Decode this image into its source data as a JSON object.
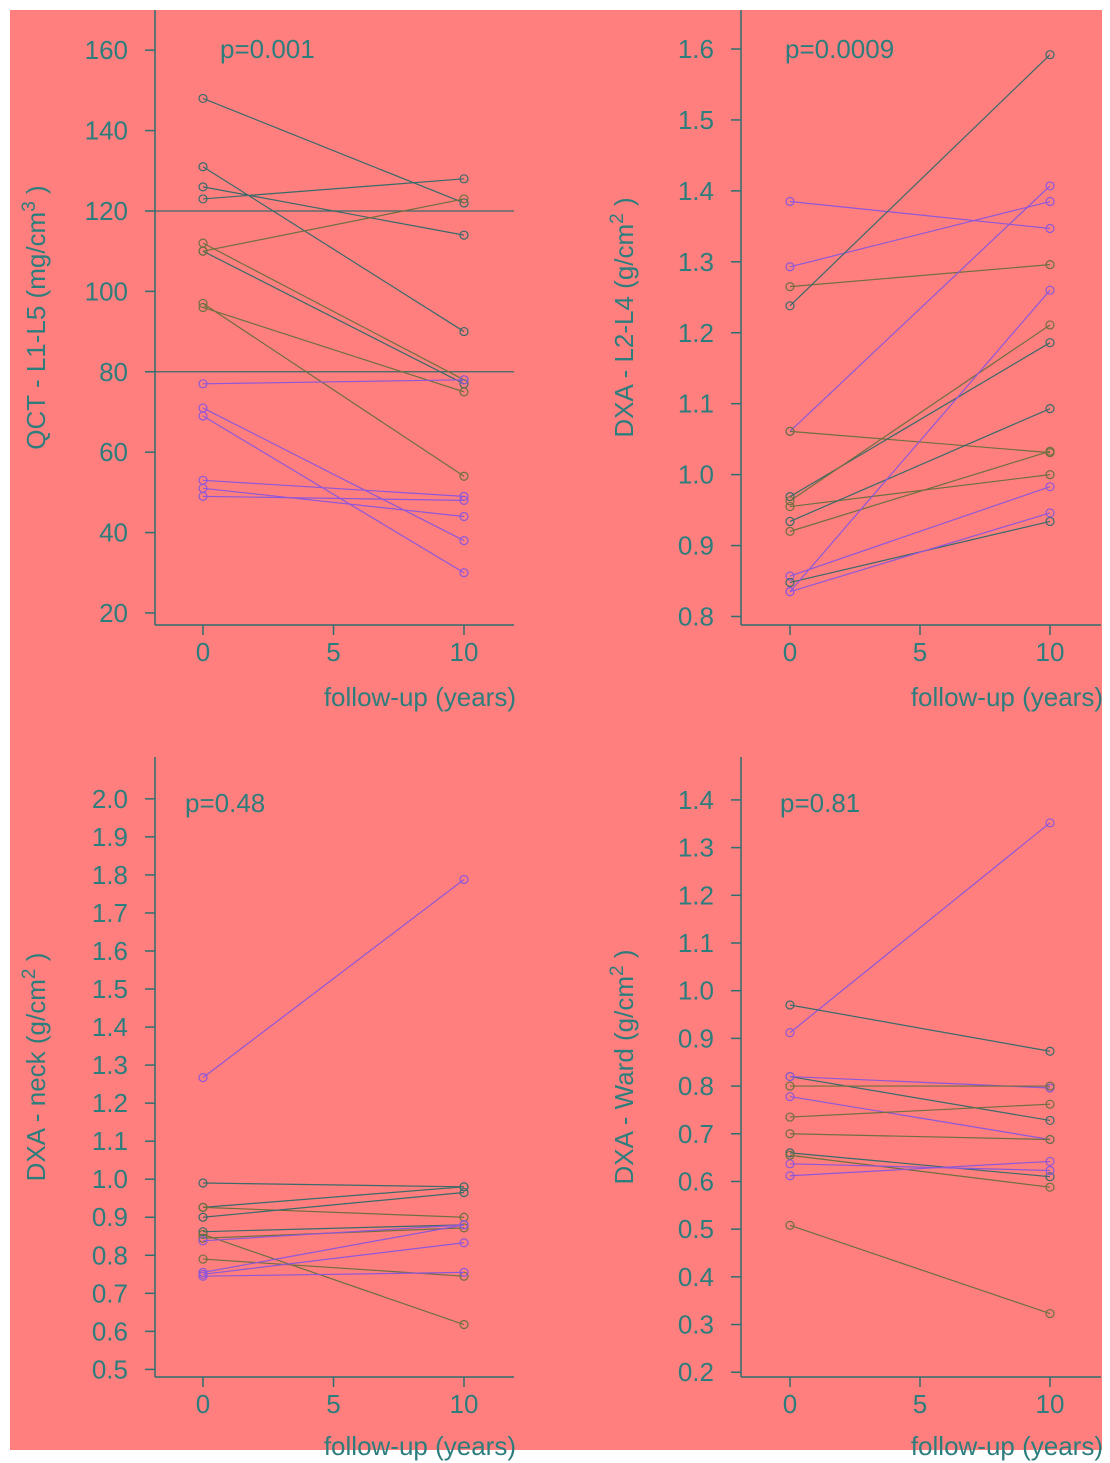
{
  "colors": {
    "background": "#ff7f7f",
    "axis": "#2f6f6f",
    "text": "#2e7d7d",
    "line_teal": "#3a6a6a",
    "line_olive": "#6f6f3f",
    "line_purple": "#8f57d8"
  },
  "chart_data": [
    {
      "type": "line",
      "panel": "top-left",
      "ylabel_main": "QCT - L1-L5 (mg/cm",
      "ylabel_sup": "3",
      "ylabel_end": " )",
      "xlabel": "follow-up (years)",
      "annotation": "p=0.001",
      "xlim": [
        -1.8,
        11.8
      ],
      "ylim": [
        17,
        170
      ],
      "xticks": [
        0,
        5,
        10
      ],
      "yticks": [
        20,
        40,
        60,
        80,
        100,
        120,
        140,
        160
      ],
      "ytick_labels": [
        "20",
        "40",
        "60",
        "80",
        "100",
        "120",
        "140",
        "160"
      ],
      "reference_lines": [
        120,
        80
      ],
      "series": [
        {
          "color": "teal",
          "values": [
            148,
            122
          ]
        },
        {
          "color": "teal",
          "values": [
            131,
            90
          ]
        },
        {
          "color": "teal",
          "values": [
            126,
            114
          ]
        },
        {
          "color": "teal",
          "values": [
            123,
            128
          ]
        },
        {
          "color": "olive",
          "values": [
            112,
            78
          ]
        },
        {
          "color": "teal",
          "values": [
            110,
            77
          ]
        },
        {
          "color": "olive",
          "values": [
            110,
            123
          ]
        },
        {
          "color": "olive",
          "values": [
            97,
            54
          ]
        },
        {
          "color": "olive",
          "values": [
            96,
            75
          ]
        },
        {
          "color": "purple",
          "values": [
            77,
            78
          ]
        },
        {
          "color": "purple",
          "values": [
            71,
            38
          ]
        },
        {
          "color": "purple",
          "values": [
            69,
            30
          ]
        },
        {
          "color": "purple",
          "values": [
            53,
            49
          ]
        },
        {
          "color": "purple",
          "values": [
            51,
            44
          ]
        },
        {
          "color": "purple",
          "values": [
            49,
            48
          ]
        }
      ]
    },
    {
      "type": "line",
      "panel": "top-right",
      "ylabel_main": "DXA - L2-L4 (g/cm",
      "ylabel_sup": "2",
      "ylabel_end": " )",
      "xlabel": "follow-up (years)",
      "annotation": "p=0.0009",
      "xlim": [
        -1.8,
        11.8
      ],
      "ylim": [
        0.788,
        1.655
      ],
      "xticks": [
        0,
        5,
        10
      ],
      "yticks": [
        0.8,
        0.9,
        1.0,
        1.1,
        1.2,
        1.3,
        1.4,
        1.5,
        1.6
      ],
      "ytick_labels": [
        "0.8",
        "0.9",
        "1.0",
        "1.1",
        "1.2",
        "1.3",
        "1.4",
        "1.5",
        "1.6"
      ],
      "reference_lines": [],
      "series": [
        {
          "color": "purple",
          "values": [
            1.385,
            1.347
          ]
        },
        {
          "color": "purple",
          "values": [
            1.293,
            1.385
          ]
        },
        {
          "color": "olive",
          "values": [
            1.265,
            1.296
          ]
        },
        {
          "color": "teal",
          "values": [
            1.238,
            1.592
          ]
        },
        {
          "color": "purple",
          "values": [
            1.061,
            1.407
          ]
        },
        {
          "color": "olive",
          "values": [
            1.061,
            1.031
          ]
        },
        {
          "color": "teal",
          "values": [
            0.969,
            1.186
          ]
        },
        {
          "color": "olive",
          "values": [
            0.963,
            1.211
          ]
        },
        {
          "color": "olive",
          "values": [
            0.955,
            1.0
          ]
        },
        {
          "color": "teal",
          "values": [
            0.934,
            1.093
          ]
        },
        {
          "color": "olive",
          "values": [
            0.92,
            1.033
          ]
        },
        {
          "color": "purple",
          "values": [
            0.857,
            0.983
          ]
        },
        {
          "color": "teal",
          "values": [
            0.848,
            0.934
          ]
        },
        {
          "color": "purple",
          "values": [
            0.835,
            0.946
          ]
        },
        {
          "color": "purple",
          "values": [
            0.835,
            1.26
          ]
        }
      ]
    },
    {
      "type": "line",
      "panel": "bottom-left",
      "ylabel_main": "DXA - neck (g/cm",
      "ylabel_sup": "2",
      "ylabel_end": " )",
      "xlabel": "follow-up (years)",
      "annotation": "p=0.48",
      "xlim": [
        -1.8,
        11.8
      ],
      "ylim": [
        0.48,
        2.11
      ],
      "xticks": [
        0,
        5,
        10
      ],
      "yticks": [
        0.5,
        0.6,
        0.7,
        0.8,
        0.9,
        1.0,
        1.1,
        1.2,
        1.3,
        1.4,
        1.5,
        1.6,
        1.7,
        1.8,
        1.9,
        2.0
      ],
      "ytick_labels": [
        "0.5",
        "0.6",
        "0.7",
        "0.8",
        "0.9",
        "1.0",
        "1.1",
        "1.2",
        "1.3",
        "1.4",
        "1.5",
        "1.6",
        "1.7",
        "1.8",
        "1.9",
        "2.0"
      ],
      "reference_lines": [],
      "series": [
        {
          "color": "purple",
          "values": [
            1.267,
            1.788
          ]
        },
        {
          "color": "teal",
          "values": [
            0.99,
            0.98
          ]
        },
        {
          "color": "teal",
          "values": [
            0.926,
            0.98
          ]
        },
        {
          "color": "olive",
          "values": [
            0.926,
            0.9
          ]
        },
        {
          "color": "teal",
          "values": [
            0.9,
            0.965
          ]
        },
        {
          "color": "teal",
          "values": [
            0.862,
            0.88
          ]
        },
        {
          "color": "olive",
          "values": [
            0.855,
            0.618
          ]
        },
        {
          "color": "olive",
          "values": [
            0.845,
            0.872
          ]
        },
        {
          "color": "olive",
          "values": [
            0.79,
            0.745
          ]
        },
        {
          "color": "purple",
          "values": [
            0.838,
            0.88
          ]
        },
        {
          "color": "purple",
          "values": [
            0.75,
            0.833
          ]
        },
        {
          "color": "purple",
          "values": [
            0.745,
            0.755
          ]
        },
        {
          "color": "purple",
          "values": [
            0.755,
            0.88
          ]
        }
      ]
    },
    {
      "type": "line",
      "panel": "bottom-right",
      "ylabel_main": "DXA - Ward (g/cm",
      "ylabel_sup": "2",
      "ylabel_end": " )",
      "xlabel": "follow-up (years)",
      "annotation": "p=0.81",
      "xlim": [
        -1.8,
        11.8
      ],
      "ylim": [
        0.19,
        1.49
      ],
      "xticks": [
        0,
        5,
        10
      ],
      "yticks": [
        0.2,
        0.3,
        0.4,
        0.5,
        0.6,
        0.7,
        0.8,
        0.9,
        1.0,
        1.1,
        1.2,
        1.3,
        1.4
      ],
      "ytick_labels": [
        "0.2",
        "0.3",
        "0.4",
        "0.5",
        "0.6",
        "0.7",
        "0.8",
        "0.9",
        "1.0",
        "1.1",
        "1.2",
        "1.3",
        "1.4"
      ],
      "reference_lines": [],
      "series": [
        {
          "color": "purple",
          "values": [
            0.912,
            1.352
          ]
        },
        {
          "color": "teal",
          "values": [
            0.97,
            0.873
          ]
        },
        {
          "color": "teal",
          "values": [
            0.82,
            0.728
          ]
        },
        {
          "color": "purple",
          "values": [
            0.82,
            0.796
          ]
        },
        {
          "color": "olive",
          "values": [
            0.8,
            0.8
          ]
        },
        {
          "color": "purple",
          "values": [
            0.778,
            0.688
          ]
        },
        {
          "color": "olive",
          "values": [
            0.735,
            0.762
          ]
        },
        {
          "color": "olive",
          "values": [
            0.7,
            0.688
          ]
        },
        {
          "color": "teal",
          "values": [
            0.66,
            0.61
          ]
        },
        {
          "color": "olive",
          "values": [
            0.655,
            0.588
          ]
        },
        {
          "color": "purple",
          "values": [
            0.637,
            0.623
          ]
        },
        {
          "color": "purple",
          "values": [
            0.612,
            0.642
          ]
        },
        {
          "color": "olive",
          "values": [
            0.508,
            0.323
          ]
        }
      ]
    }
  ]
}
